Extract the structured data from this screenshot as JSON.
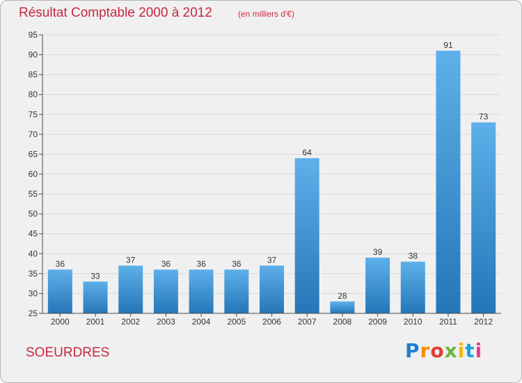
{
  "title": "Résultat Comptable 2000 à 2012",
  "subtitle": "(en milliers d'€)",
  "place": "SOEURDRES",
  "logo": {
    "text": "Proxiti",
    "colors": [
      "#1e7fd0",
      "#f28c00",
      "#e63c2e",
      "#6db33f",
      "#f2b600",
      "#1aa3d6",
      "#e63c8c"
    ]
  },
  "colors": {
    "title": "#c8283e",
    "bar_light": "#5eb0ea",
    "bar_dark": "#2576b8",
    "grid": "#d8d8d8",
    "axis": "#4a4a4a"
  },
  "chart_data": {
    "type": "bar",
    "title": "Résultat Comptable 2000 à 2012",
    "subtitle": "(en milliers d'€)",
    "xlabel": "",
    "ylabel": "",
    "ylim": [
      25,
      95
    ],
    "yticks": [
      25,
      30,
      35,
      40,
      45,
      50,
      55,
      60,
      65,
      70,
      75,
      80,
      85,
      90,
      95
    ],
    "grid": true,
    "categories": [
      "2000",
      "2001",
      "2002",
      "2003",
      "2004",
      "2005",
      "2006",
      "2007",
      "2008",
      "2009",
      "2010",
      "2011",
      "2012"
    ],
    "values": [
      36,
      33,
      37,
      36,
      36,
      36,
      37,
      64,
      28,
      39,
      38,
      91,
      73
    ]
  }
}
